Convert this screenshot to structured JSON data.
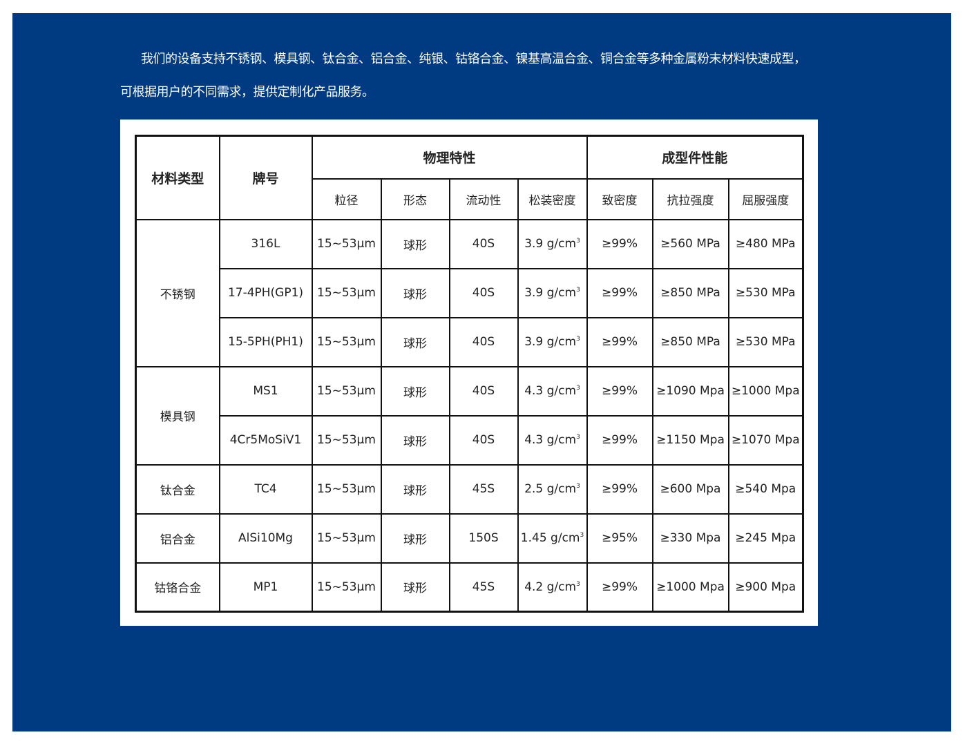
{
  "intro": {
    "line1": "我们的设备支持不锈钢、模具钢、钛合金、铝合金、纯银、钴铬合金、镍基高温合金、铜合金等多种金属粉末材料快速成型，",
    "line2": "可根据用户的不同需求，提供定制化产品服务。"
  },
  "colors": {
    "background": "#003a80",
    "card": "#ffffff",
    "border": "#111111"
  },
  "table": {
    "headers": {
      "material_type": "材料类型",
      "grade": "牌号",
      "physical": "物理特性",
      "part_performance": "成型件性能",
      "sub": [
        "粒径",
        "形态",
        "流动性",
        "松装密度",
        "致密度",
        "抗拉强度",
        "屈服强度"
      ]
    },
    "groups": [
      {
        "type": "不锈钢",
        "rows": [
          {
            "grade": "316L",
            "size": "15~53μm",
            "shape": "球形",
            "flow": "40S",
            "density": "3.9 g/cm",
            "rel": "≥99%",
            "tensile": "≥560 MPa",
            "yield": "≥480 MPa"
          },
          {
            "grade": "17-4PH(GP1)",
            "size": "15~53μm",
            "shape": "球形",
            "flow": "40S",
            "density": "3.9 g/cm",
            "rel": "≥99%",
            "tensile": "≥850 MPa",
            "yield": "≥530 MPa"
          },
          {
            "grade": "15-5PH(PH1)",
            "size": "15~53μm",
            "shape": "球形",
            "flow": "40S",
            "density": "3.9 g/cm",
            "rel": "≥99%",
            "tensile": "≥850 MPa",
            "yield": "≥530 MPa"
          }
        ]
      },
      {
        "type": "模具钢",
        "rows": [
          {
            "grade": "MS1",
            "size": "15~53μm",
            "shape": "球形",
            "flow": "40S",
            "density": "4.3 g/cm",
            "rel": "≥99%",
            "tensile": "≥1090 Mpa",
            "yield": "≥1000 Mpa"
          },
          {
            "grade": "4Cr5MoSiV1",
            "size": "15~53μm",
            "shape": "球形",
            "flow": "40S",
            "density": "4.3 g/cm",
            "rel": "≥99%",
            "tensile": "≥1150 Mpa",
            "yield": "≥1070 Mpa"
          }
        ]
      },
      {
        "type": "钛合金",
        "rows": [
          {
            "grade": "TC4",
            "size": "15~53μm",
            "shape": "球形",
            "flow": "45S",
            "density": "2.5 g/cm",
            "rel": "≥99%",
            "tensile": "≥600 Mpa",
            "yield": "≥540 Mpa"
          }
        ]
      },
      {
        "type": "铝合金",
        "rows": [
          {
            "grade": "AlSi10Mg",
            "size": "15~53μm",
            "shape": "球形",
            "flow": "150S",
            "density": "1.45 g/cm",
            "rel": "≥95%",
            "tensile": "≥330 Mpa",
            "yield": "≥245 Mpa"
          }
        ]
      },
      {
        "type": "钴铬合金",
        "rows": [
          {
            "grade": "MP1",
            "size": "15~53μm",
            "shape": "球形",
            "flow": "45S",
            "density": "4.2 g/cm",
            "rel": "≥99%",
            "tensile": "≥1000 Mpa",
            "yield": "≥900 Mpa"
          }
        ]
      }
    ],
    "density_superscript": "3"
  }
}
